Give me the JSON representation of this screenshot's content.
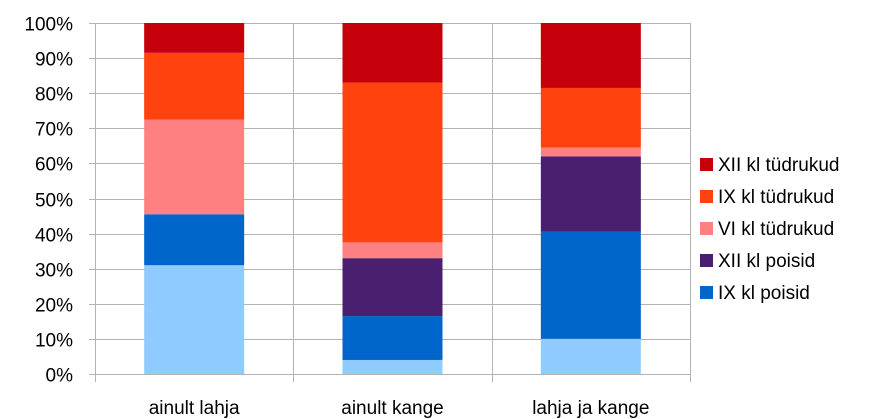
{
  "chart_data": {
    "type": "bar",
    "stacked": true,
    "percent": true,
    "categories": [
      "ainult lahja",
      "ainult kange",
      "lahja ja kange"
    ],
    "y_ticks": [
      "0%",
      "10%",
      "20%",
      "30%",
      "40%",
      "50%",
      "60%",
      "70%",
      "80%",
      "90%",
      "100%"
    ],
    "ylim": [
      0,
      100
    ],
    "grid": "horizontal and vertical",
    "legend_position": "right",
    "series": [
      {
        "values": [
          31,
          4,
          10
        ],
        "color": "#8fcbff"
      },
      {
        "name": "IX kl poisid",
        "values": [
          14.5,
          12.5,
          30.5
        ],
        "color": "#0066cc"
      },
      {
        "name": "XII kl poisid",
        "values": [
          0,
          16.5,
          21.5
        ],
        "color": "#4b1f6f"
      },
      {
        "name": "VI kl tüdrukud",
        "values": [
          27,
          4.5,
          2.5
        ],
        "color": "#ff8080"
      },
      {
        "name": "IX kl tüdrukud",
        "values": [
          19,
          45.5,
          17
        ],
        "color": "#ff420e"
      },
      {
        "name": "XII kl tüdrukud",
        "values": [
          8.5,
          17,
          18.5
        ],
        "color": "#c5000b"
      }
    ],
    "legend": [
      "XII kl tüdrukud",
      "IX kl tüdrukud",
      "VI kl tüdrukud",
      "XII kl poisid",
      "IX kl poisid"
    ]
  }
}
